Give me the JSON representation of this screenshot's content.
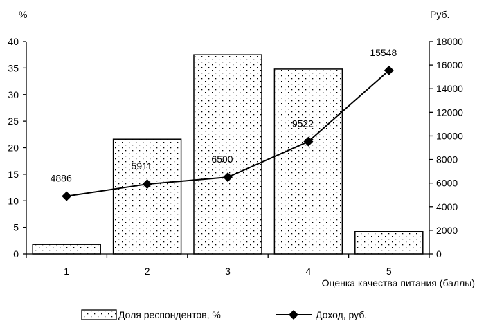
{
  "chart_data": {
    "type": "bar",
    "categories": [
      "1",
      "2",
      "3",
      "4",
      "5"
    ],
    "xlabel": "Оценка качества питания (баллы)",
    "ylabel_left": "%",
    "ylabel_right": "Руб.",
    "ylim_left": [
      0,
      40
    ],
    "yticks_left": [
      "0",
      "5",
      "10",
      "15",
      "20",
      "25",
      "30",
      "35",
      "40"
    ],
    "ylim_right": [
      0,
      18000
    ],
    "yticks_right": [
      "0",
      "2000",
      "4000",
      "6000",
      "8000",
      "10000",
      "12000",
      "14000",
      "16000",
      "18000"
    ],
    "grid": false,
    "legend_position": "bottom",
    "series": [
      {
        "name": "Доля респондентов, %",
        "type": "bar",
        "axis": "left",
        "values": [
          1.8,
          21.6,
          37.5,
          34.8,
          4.2
        ]
      },
      {
        "name": "Доход, руб.",
        "type": "line",
        "axis": "right",
        "values": [
          4886,
          5911,
          6500,
          9522,
          15548
        ],
        "labels": [
          "4886",
          "5911",
          "6500",
          "9522",
          "15548"
        ]
      }
    ]
  }
}
